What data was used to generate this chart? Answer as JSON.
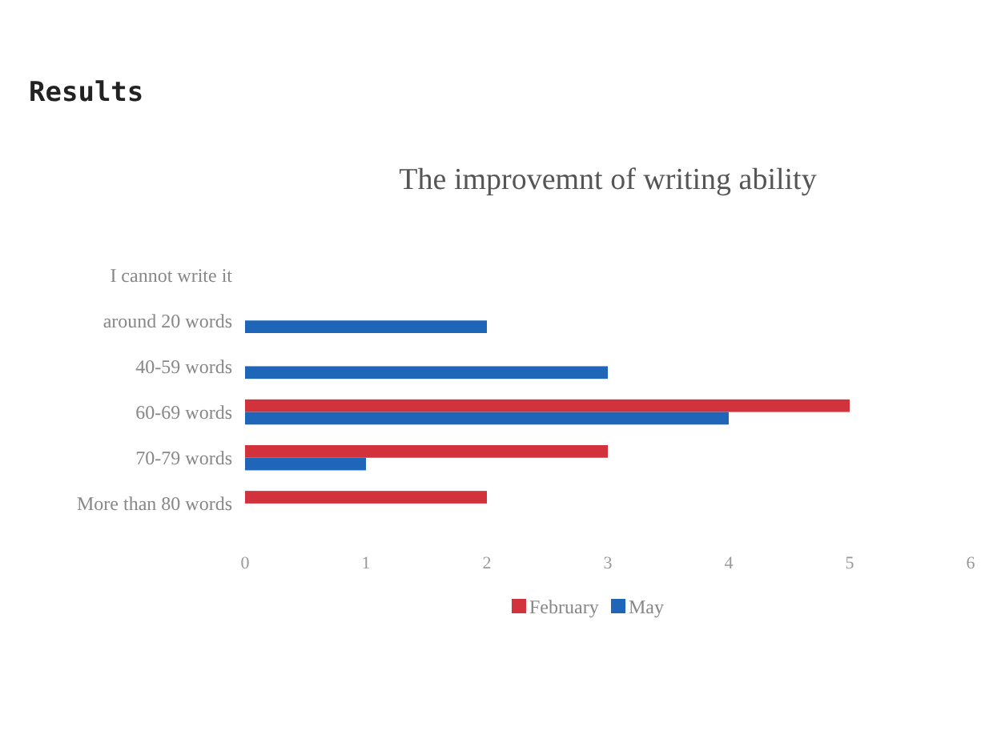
{
  "chart_data": {
    "type": "bar",
    "orientation": "horizontal",
    "title": "The improvemnt of writing ability",
    "annotations": [
      "Results"
    ],
    "categories": [
      "I cannot write it",
      "around 20 words",
      "40-59 words",
      "60-69 words",
      "70-79 words",
      "More than 80 words"
    ],
    "series": [
      {
        "name": "February",
        "color": "#d2323c",
        "values": [
          0,
          0,
          0,
          5,
          3,
          2
        ]
      },
      {
        "name": "May",
        "color": "#1f65b8",
        "values": [
          0,
          2,
          3,
          4,
          1,
          0
        ]
      }
    ],
    "xlim": [
      0,
      6
    ],
    "xticks": [
      0,
      1,
      2,
      3,
      4,
      5,
      6
    ],
    "grid": false,
    "legend": "bottom"
  }
}
